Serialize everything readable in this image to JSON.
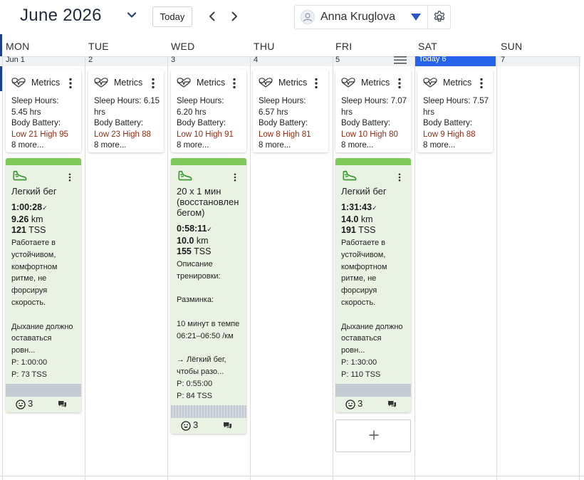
{
  "header": {
    "month_title": "June 2026",
    "today_button": "Today",
    "user_name": "Anna Kruglova"
  },
  "colors": {
    "accent": "#2563eb",
    "workout_green": "#7fc95a",
    "card_green_bg": "#eaf3e3",
    "battery_red": "#9a2a12"
  },
  "days": [
    {
      "name": "MON",
      "date": "Jun 1"
    },
    {
      "name": "TUE",
      "date": "2"
    },
    {
      "name": "WED",
      "date": "3"
    },
    {
      "name": "THU",
      "date": "4"
    },
    {
      "name": "FRI",
      "date": "5"
    },
    {
      "name": "SAT",
      "date": "Today 6"
    },
    {
      "name": "SUN",
      "date": "7"
    }
  ],
  "metrics": [
    {
      "title": "Metrics",
      "sleep_label": "Sleep Hours:",
      "sleep_value": "5.45 hrs",
      "battery_label": "Body Battery:",
      "battery_value": "Low 21 High 95",
      "more": "8 more..."
    },
    {
      "title": "Metrics",
      "sleep_label": "Sleep Hours:",
      "sleep_value": "6.15 hrs",
      "battery_label": "Body Battery:",
      "battery_value": "Low 23 High 88",
      "more": "8 more..."
    },
    {
      "title": "Metrics",
      "sleep_label": "Sleep Hours:",
      "sleep_value": "6.20 hrs",
      "battery_label": "Body Battery:",
      "battery_value": "Low 10 High 91",
      "more": "8 more..."
    },
    {
      "title": "Metrics",
      "sleep_label": "Sleep Hours:",
      "sleep_value": "6.57 hrs",
      "battery_label": "Body Battery:",
      "battery_value": "Low 8 High 81",
      "more": "8 more..."
    },
    {
      "title": "Metrics",
      "sleep_label": "Sleep Hours:",
      "sleep_value": "7.07 hrs",
      "battery_label": "Body Battery:",
      "battery_value": "Low 10 High 80",
      "more": "8 more..."
    },
    {
      "title": "Metrics",
      "sleep_label": "Sleep Hours:",
      "sleep_value": "7.57 hrs",
      "battery_label": "Body Battery:",
      "battery_value": "Low 9 High 88",
      "more": "8 more..."
    }
  ],
  "workouts": [
    {
      "title": "Легкий бег",
      "duration": "1:00:28",
      "distance": "9.26",
      "distance_unit": "km",
      "tss": "121",
      "tss_unit": "TSS",
      "desc_lines": [
        "Работаете в",
        "устойчивом,",
        "комфортном",
        "ритме, не",
        "форсируя",
        "скорость.",
        "",
        "Дыхание должно",
        "оставаться",
        "ровн..."
      ],
      "planned_time": "P: 1:00:00",
      "planned_tss": "P: 73 TSS",
      "likes": "3"
    },
    {
      "title": "20 x 1 мин (восстановлен бегом)",
      "duration": "0:58:11",
      "distance": "10.0",
      "distance_unit": "km",
      "tss": "155",
      "tss_unit": "TSS",
      "desc_lines": [
        "Описание",
        "тренировки:",
        "",
        "Разминка:",
        "",
        "10 минут в темпе",
        "06:21–06:50 /км",
        "",
        "→ Лёгкий бег,",
        "чтобы разо..."
      ],
      "planned_time": "P: 0:55:00",
      "planned_tss": "P: 84 TSS",
      "likes": "3"
    },
    {
      "title": "Легкий бег",
      "duration": "1:31:43",
      "distance": "14.0",
      "distance_unit": "km",
      "tss": "191",
      "tss_unit": "TSS",
      "desc_lines": [
        "Работаете в",
        "устойчивом,",
        "комфортном",
        "ритме, не",
        "форсируя",
        "скорость.",
        "",
        "Дыхание должно",
        "оставаться",
        "ровн..."
      ],
      "planned_time": "P: 1:30:00",
      "planned_tss": "P: 110 TSS",
      "likes": "3"
    }
  ]
}
